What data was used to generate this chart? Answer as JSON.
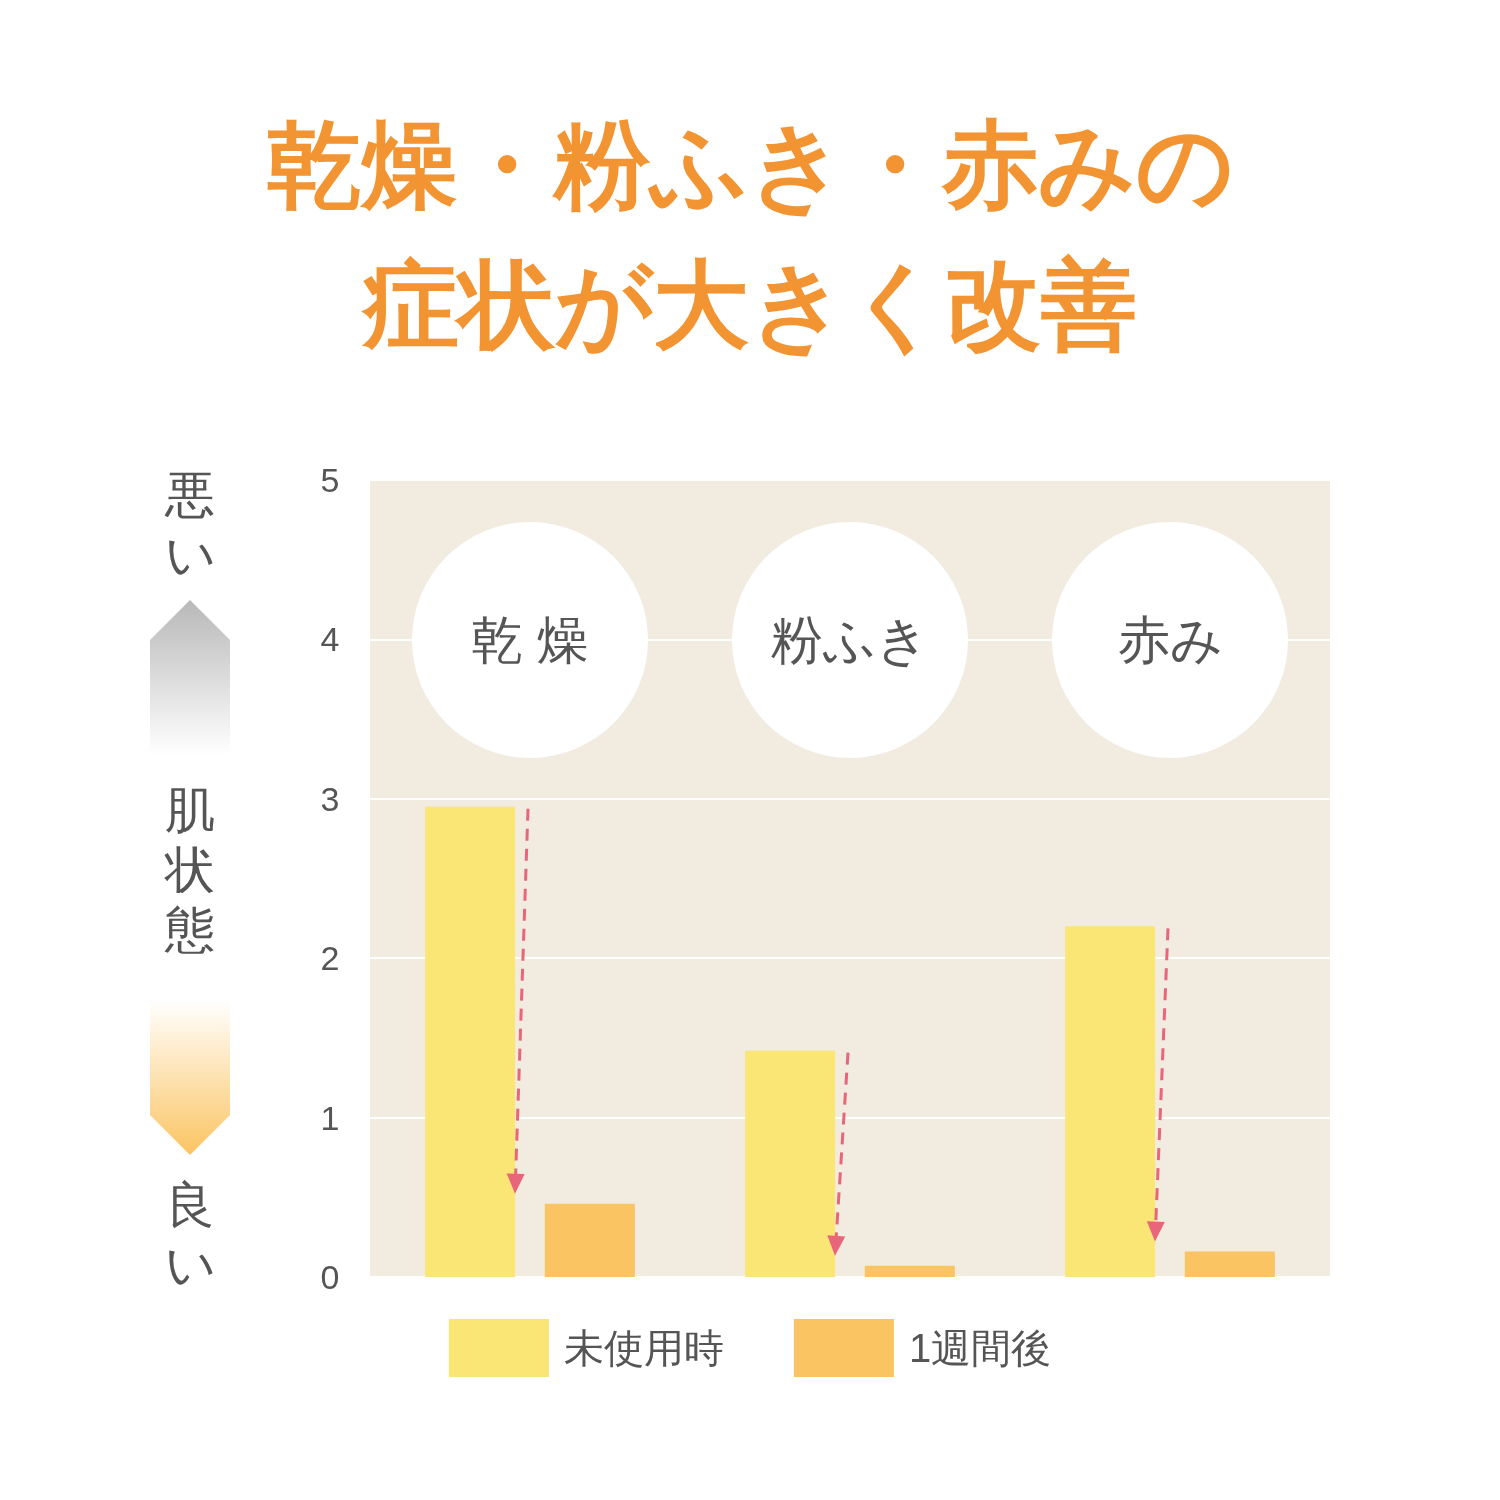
{
  "chart_data": {
    "type": "bar",
    "title": "乾燥・粉ふき・赤みの症状が大きく改善",
    "ylabel": "肌状態",
    "annotations": [
      "悪い",
      "良い"
    ],
    "categories": [
      "乾 燥",
      "粉ふき",
      "赤み"
    ],
    "series": [
      {
        "name": "未使用時",
        "color": "#f9e675",
        "values": [
          2.95,
          1.42,
          2.2
        ]
      },
      {
        "name": "1週間後",
        "color": "#fbc462",
        "values": [
          0.46,
          0.07,
          0.16
        ]
      }
    ],
    "ylim": [
      0,
      5
    ],
    "yticks": [
      0,
      1,
      2,
      3,
      4,
      5
    ],
    "grid": "y",
    "legend": "bottom"
  }
}
